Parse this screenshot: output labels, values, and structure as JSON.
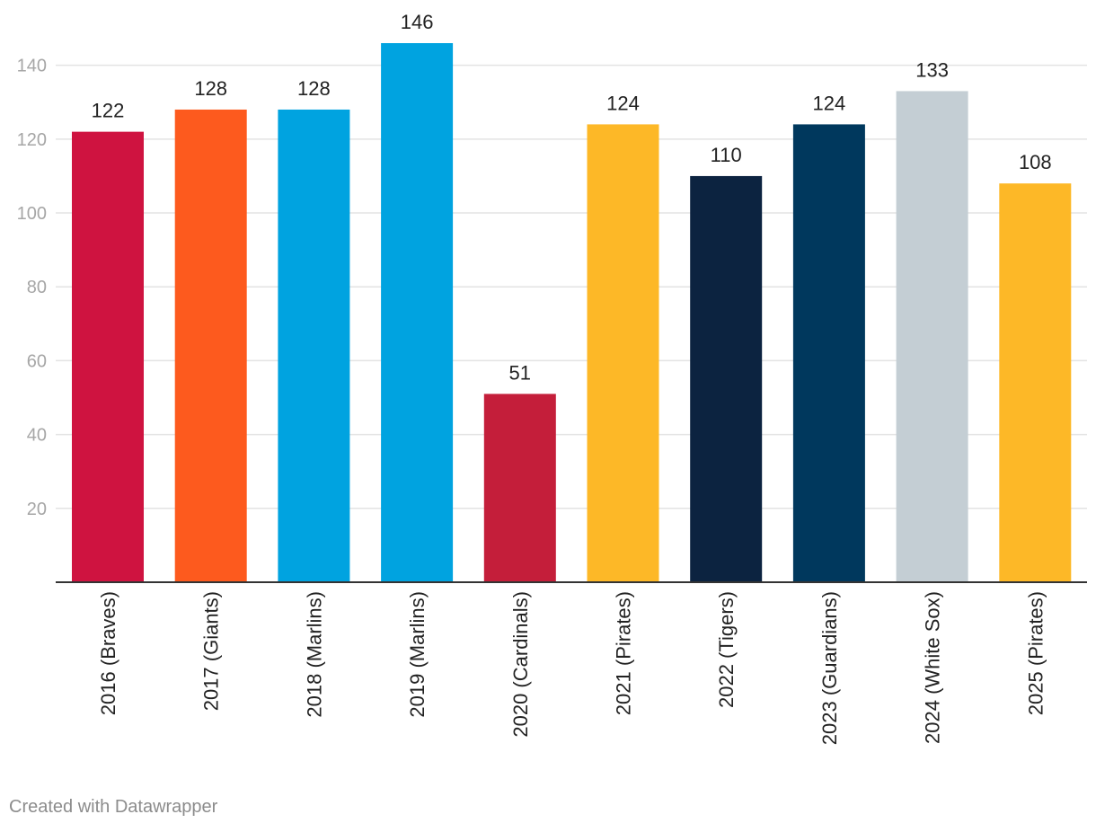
{
  "chart_data": {
    "type": "bar",
    "categories": [
      "2016 (Braves)",
      "2017 (Giants)",
      "2018 (Marlins)",
      "2019 (Marlins)",
      "2020 (Cardinals)",
      "2021 (Pirates)",
      "2022 (Tigers)",
      "2023 (Guardians)",
      "2024 (White Sox)",
      "2025 (Pirates)"
    ],
    "values": [
      122,
      128,
      128,
      146,
      51,
      124,
      110,
      124,
      133,
      108
    ],
    "colors": [
      "#cf1340",
      "#fd5a1e",
      "#00a3e0",
      "#00a3e0",
      "#c41e3a",
      "#fdb827",
      "#0c2340",
      "#00385d",
      "#c4ced4",
      "#fdb827"
    ],
    "ylim": [
      0,
      146
    ],
    "yticks": [
      20,
      40,
      60,
      80,
      100,
      120,
      140
    ],
    "grid": true,
    "title": "",
    "xlabel": "",
    "ylabel": ""
  },
  "footer": {
    "credit": "Created with Datawrapper"
  }
}
